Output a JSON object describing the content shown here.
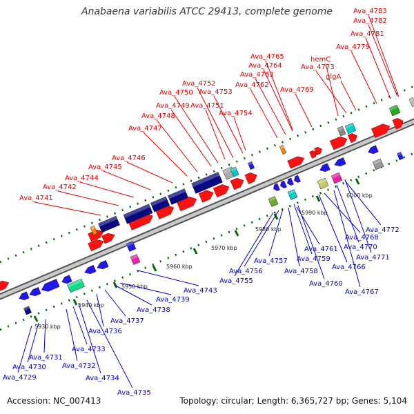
{
  "title": "Anabaena variabilis ATCC 29413, complete genome",
  "footer": {
    "accession": "Accession: NC_007413",
    "summary": "Topology: circular; Length: 6,365,727 bp; Genes: 5,104"
  },
  "colors": {
    "forward_label": "#e00000",
    "reverse_label": "#0000cc",
    "red_gene": "#ff1010",
    "blue_gene": "#1a1aee",
    "navy_gene": "#0a0a80",
    "tick": "#006600",
    "axis": "#888888"
  },
  "ruler": [
    "5930 kbp",
    "5940 kbp",
    "5950 kbp",
    "5960 kbp",
    "5970 kbp",
    "5980 kbp",
    "5990 kbp",
    "6000 kbp"
  ],
  "forward_labels": [
    "Ava_4741",
    "Ava_4742",
    "Ava_4744",
    "Ava_4745",
    "Ava_4746",
    "Ava_4747",
    "Ava_4748",
    "Ava_4749",
    "Ava_4750",
    "Ava_4751",
    "Ava_4752",
    "Ava_4753",
    "Ava_4754",
    "Ava_4762",
    "Ava_4763",
    "Ava_4764",
    "Ava_4765",
    "Ava_4769",
    "hemC",
    "Ava_4773",
    "glgA",
    "Ava_4779",
    "Ava_4781",
    "Ava_4782",
    "Ava_4783"
  ],
  "reverse_labels": [
    "Ava_4729",
    "Ava_4730",
    "Ava_4731",
    "Ava_4732",
    "Ava_4733",
    "Ava_4734",
    "Ava_4735",
    "Ava_4736",
    "Ava_4737",
    "Ava_4738",
    "Ava_4739",
    "Ava_4743",
    "Ava_4755",
    "Ava_4756",
    "Ava_4757",
    "Ava_4758",
    "Ava_4759",
    "Ava_4760",
    "Ava_4761",
    "Ava_4766",
    "Ava_4767",
    "Ava_4768",
    "Ava_4770",
    "Ava_4771",
    "Ava_4772"
  ]
}
